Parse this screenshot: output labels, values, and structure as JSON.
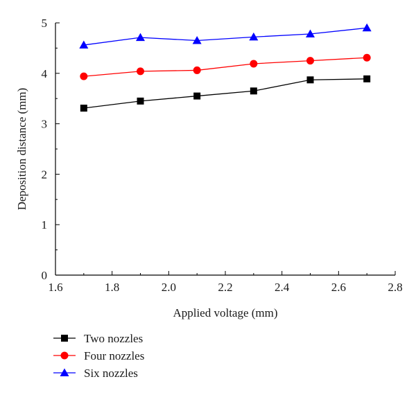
{
  "chart_data": {
    "type": "line",
    "title": "",
    "xlabel": "Applied voltage (mm)",
    "ylabel": "Deposition distance (mm)",
    "xlim": [
      1.6,
      2.8
    ],
    "ylim": [
      0,
      5
    ],
    "xticks": [
      "1.6",
      "1.8",
      "2.0",
      "2.2",
      "2.4",
      "2.6",
      "2.8"
    ],
    "yticks": [
      "0",
      "1",
      "2",
      "3",
      "4",
      "5"
    ],
    "x": [
      1.7,
      1.9,
      2.1,
      2.3,
      2.5,
      2.7
    ],
    "grid": false,
    "legend_position": "bottom-left, below plot",
    "series": [
      {
        "name": "Two nozzles",
        "marker": "square",
        "color": "#000000",
        "values": [
          3.31,
          3.45,
          3.55,
          3.65,
          3.87,
          3.89
        ]
      },
      {
        "name": "Four nozzles",
        "marker": "circle",
        "color": "#ff0000",
        "values": [
          3.94,
          4.04,
          4.06,
          4.19,
          4.25,
          4.31
        ]
      },
      {
        "name": "Six nozzles",
        "marker": "triangle",
        "color": "#0000ff",
        "values": [
          4.56,
          4.71,
          4.65,
          4.72,
          4.78,
          4.9
        ]
      }
    ]
  }
}
